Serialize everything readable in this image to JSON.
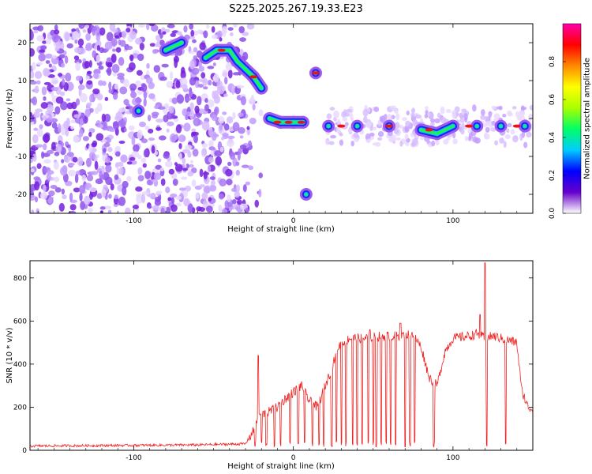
{
  "title": "S225.2025.267.19.33.E23",
  "chart_data": [
    {
      "type": "heatmap",
      "xlabel": "Height of straight line (km)",
      "ylabel": "Frequency (Hz)",
      "xlim": [
        -165,
        150
      ],
      "ylim": [
        -25,
        25
      ],
      "xticks": [
        -100,
        0,
        100
      ],
      "yticks": [
        -20,
        -10,
        0,
        10,
        20
      ],
      "colorbar": {
        "label": "Normalized spectral amplitude",
        "range": [
          0,
          1
        ],
        "ticks": [
          0,
          0.2,
          0.4,
          0.6,
          0.8
        ],
        "tick_labels": [
          "0.0",
          "0.2",
          "0.4",
          "0.6",
          "0.8"
        ],
        "colormap": [
          "#ffffff",
          "#6600cc",
          "#0000ff",
          "#00ccff",
          "#00ff66",
          "#aaff00",
          "#ffff00",
          "#ff8800",
          "#ff0000",
          "#ff00aa"
        ]
      },
      "ridge": [
        {
          "x": -97,
          "y": 2
        },
        {
          "x": -80,
          "y": 18
        },
        {
          "x": -70,
          "y": 20
        },
        {
          "x": -55,
          "y": 16
        },
        {
          "x": -48,
          "y": 18
        },
        {
          "x": -40,
          "y": 18
        },
        {
          "x": -35,
          "y": 15
        },
        {
          "x": -30,
          "y": 13
        },
        {
          "x": -25,
          "y": 11
        },
        {
          "x": -20,
          "y": 8
        },
        {
          "x": -15,
          "y": 0
        },
        {
          "x": -8,
          "y": -1
        },
        {
          "x": 0,
          "y": -1
        },
        {
          "x": 6,
          "y": -1
        },
        {
          "x": 8,
          "y": -20
        },
        {
          "x": 14,
          "y": 12
        },
        {
          "x": 22,
          "y": -2
        },
        {
          "x": 40,
          "y": -2
        },
        {
          "x": 60,
          "y": -2
        },
        {
          "x": 80,
          "y": -3
        },
        {
          "x": 90,
          "y": -4
        },
        {
          "x": 100,
          "y": -2
        },
        {
          "x": 115,
          "y": -2
        },
        {
          "x": 130,
          "y": -2
        },
        {
          "x": 145,
          "y": -2
        }
      ]
    },
    {
      "type": "line",
      "xlabel": "Height of straight line (km)",
      "ylabel": "SNR (10 * v/v)",
      "xlim": [
        -165,
        150
      ],
      "ylim": [
        0,
        880
      ],
      "xticks": [
        -100,
        0,
        100
      ],
      "yticks": [
        0,
        200,
        400,
        600,
        800
      ],
      "color": "#ee2222",
      "baseline": [
        {
          "x": -165,
          "y": 20
        },
        {
          "x": -60,
          "y": 25
        },
        {
          "x": -30,
          "y": 30
        },
        {
          "x": -25,
          "y": 90
        },
        {
          "x": -22,
          "y": 160
        },
        {
          "x": -15,
          "y": 180
        },
        {
          "x": -10,
          "y": 200
        },
        {
          "x": -5,
          "y": 240
        },
        {
          "x": 0,
          "y": 270
        },
        {
          "x": 5,
          "y": 300
        },
        {
          "x": 10,
          "y": 230
        },
        {
          "x": 15,
          "y": 200
        },
        {
          "x": 20,
          "y": 300
        },
        {
          "x": 25,
          "y": 400
        },
        {
          "x": 28,
          "y": 480
        },
        {
          "x": 35,
          "y": 520
        },
        {
          "x": 45,
          "y": 520
        },
        {
          "x": 55,
          "y": 530
        },
        {
          "x": 65,
          "y": 530
        },
        {
          "x": 75,
          "y": 540
        },
        {
          "x": 80,
          "y": 480
        },
        {
          "x": 85,
          "y": 340
        },
        {
          "x": 90,
          "y": 300
        },
        {
          "x": 95,
          "y": 460
        },
        {
          "x": 100,
          "y": 520
        },
        {
          "x": 110,
          "y": 530
        },
        {
          "x": 115,
          "y": 540
        },
        {
          "x": 120,
          "y": 520
        },
        {
          "x": 125,
          "y": 530
        },
        {
          "x": 130,
          "y": 520
        },
        {
          "x": 140,
          "y": 500
        },
        {
          "x": 143,
          "y": 280
        },
        {
          "x": 147,
          "y": 200
        },
        {
          "x": 150,
          "y": 190
        }
      ],
      "peaks": [
        {
          "x": -22,
          "y": 440
        },
        {
          "x": 48,
          "y": 560
        },
        {
          "x": 67,
          "y": 590
        },
        {
          "x": 117,
          "y": 630
        },
        {
          "x": 120,
          "y": 870
        }
      ],
      "dropouts": [
        -24,
        -20,
        -17,
        -12,
        -8,
        -2,
        3,
        7,
        12,
        16,
        19,
        24,
        27,
        30,
        33,
        37,
        40,
        43,
        47,
        50,
        52,
        55,
        58,
        61,
        64,
        67,
        70,
        73,
        76,
        88,
        121,
        133
      ]
    }
  ]
}
